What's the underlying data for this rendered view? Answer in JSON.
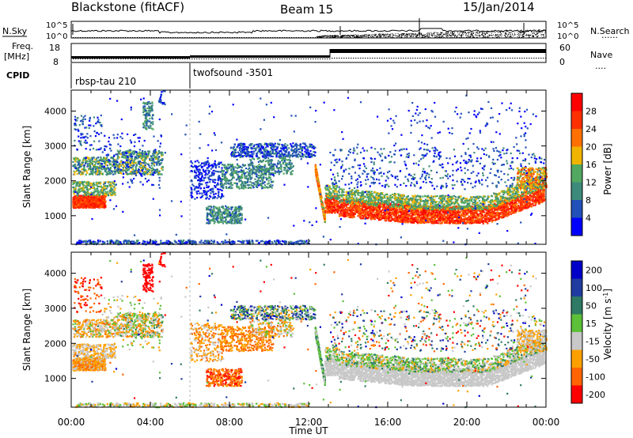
{
  "header": {
    "station": "Blackstone (fitACF)",
    "beam": "Beam 15",
    "date": "15/Jan/2014"
  },
  "sky_panel": {
    "left_label": "N.Sky",
    "right_label": "N.Search",
    "right_dots": "......",
    "tick_top": "10^5",
    "tick_bottom": "10^0",
    "tick_top_right": "10^5",
    "tick_bottom_right": "10^0"
  },
  "freq_panel": {
    "left_label_1": "Freq.",
    "left_label_2": "[MHz]",
    "right_label": "Nave",
    "right_dots": "....",
    "left_ticks": [
      "18",
      "8"
    ],
    "right_ticks": [
      "60",
      "0"
    ]
  },
  "cpid": {
    "label": "CPID",
    "segments": [
      {
        "name": "rbsp-tau 210",
        "start_hour": 0
      },
      {
        "name": "twofsound -3501",
        "start_hour": 6
      }
    ]
  },
  "chart_data": [
    {
      "type": "heatmap",
      "title": "",
      "xlabel": "",
      "ylabel": "Slant Range [km]",
      "x_range_hours": [
        0,
        24
      ],
      "ylim": [
        180,
        4600
      ],
      "y_ticks": [
        "1000",
        "2000",
        "3000",
        "4000"
      ],
      "colorbar": {
        "label": "Power [dB]",
        "ticks": [
          "4",
          "8",
          "12",
          "16",
          "20",
          "24",
          "28"
        ],
        "colors": [
          "#0000ff",
          "#2050b8",
          "#3e8a7a",
          "#52a860",
          "#f0b400",
          "#ff7000",
          "#ff3000",
          "#ff0000"
        ]
      }
    },
    {
      "type": "heatmap",
      "title": "",
      "xlabel": "Time UT",
      "ylabel": "Slant Range [km]",
      "x_range_hours": [
        0,
        24
      ],
      "ylim": [
        180,
        4600
      ],
      "y_ticks": [
        "1000",
        "2000",
        "3000",
        "4000"
      ],
      "x_ticks": [
        "00:00",
        "04:00",
        "08:00",
        "12:00",
        "16:00",
        "20:00",
        "00:00"
      ],
      "colorbar": {
        "label": "Velocity [m s^-1]",
        "ticks": [
          "200",
          "100",
          "50",
          "15",
          "-15",
          "-50",
          "-100",
          "-200"
        ],
        "colors": [
          "#0000c8",
          "#203ca0",
          "#2e7a64",
          "#5cc038",
          "#c8c8c8",
          "#ffa000",
          "#ff6400",
          "#ff0000"
        ]
      }
    }
  ]
}
